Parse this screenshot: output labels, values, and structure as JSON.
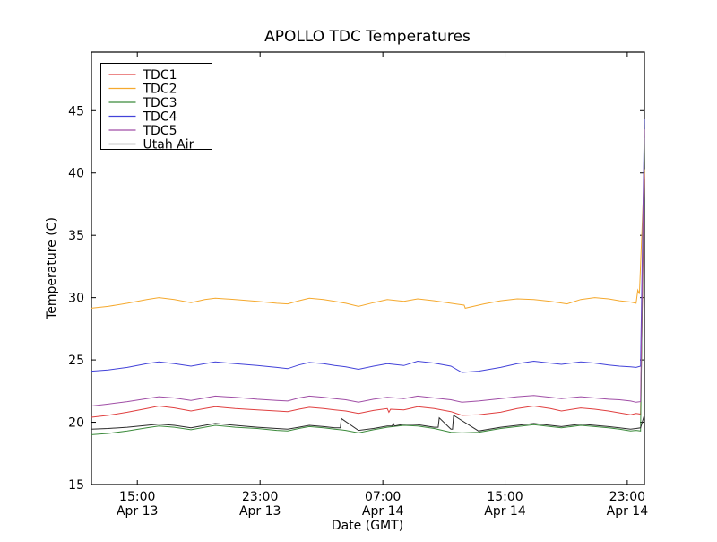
{
  "chart_data": {
    "type": "line",
    "title": "APOLLO TDC Temperatures",
    "xlabel": "Date (GMT)",
    "ylabel": "Temperature (C)",
    "ylim": [
      15,
      49.7
    ],
    "y_ticks": [
      15,
      20,
      25,
      30,
      35,
      40,
      45
    ],
    "x_ticks": [
      {
        "pos": 0.083,
        "time": "15:00",
        "date": "Apr 13"
      },
      {
        "pos": 0.305,
        "time": "23:00",
        "date": "Apr 13"
      },
      {
        "pos": 0.527,
        "time": "07:00",
        "date": "Apr 14"
      },
      {
        "pos": 0.748,
        "time": "15:00",
        "date": "Apr 14"
      },
      {
        "pos": 0.969,
        "time": "23:00",
        "date": "Apr 14"
      }
    ],
    "x_span_hours": 36.1,
    "grid": false,
    "legend_position": "upper-left",
    "series": [
      {
        "name": "TDC1",
        "color": "#e04040",
        "points": [
          [
            0,
            20.4
          ],
          [
            0.03,
            20.55
          ],
          [
            0.065,
            20.8
          ],
          [
            0.1,
            21.1
          ],
          [
            0.122,
            21.3
          ],
          [
            0.15,
            21.15
          ],
          [
            0.18,
            20.9
          ],
          [
            0.205,
            21.1
          ],
          [
            0.224,
            21.25
          ],
          [
            0.26,
            21.1
          ],
          [
            0.3,
            21.0
          ],
          [
            0.335,
            20.9
          ],
          [
            0.355,
            20.85
          ],
          [
            0.375,
            21.05
          ],
          [
            0.394,
            21.2
          ],
          [
            0.42,
            21.1
          ],
          [
            0.44,
            21.0
          ],
          [
            0.46,
            20.9
          ],
          [
            0.483,
            20.7
          ],
          [
            0.51,
            20.95
          ],
          [
            0.535,
            21.1
          ],
          [
            0.538,
            20.8
          ],
          [
            0.541,
            21.05
          ],
          [
            0.565,
            21.0
          ],
          [
            0.59,
            21.25
          ],
          [
            0.62,
            21.1
          ],
          [
            0.65,
            20.85
          ],
          [
            0.67,
            20.55
          ],
          [
            0.7,
            20.6
          ],
          [
            0.74,
            20.8
          ],
          [
            0.77,
            21.1
          ],
          [
            0.8,
            21.3
          ],
          [
            0.83,
            21.1
          ],
          [
            0.85,
            20.9
          ],
          [
            0.885,
            21.15
          ],
          [
            0.91,
            21.05
          ],
          [
            0.935,
            20.9
          ],
          [
            0.955,
            20.75
          ],
          [
            0.975,
            20.6
          ],
          [
            0.985,
            20.7
          ],
          [
            0.993,
            20.65
          ],
          [
            1.0,
            40.0
          ]
        ]
      },
      {
        "name": "TDC2",
        "color": "#f5a92e",
        "points": [
          [
            0,
            29.15
          ],
          [
            0.03,
            29.3
          ],
          [
            0.065,
            29.55
          ],
          [
            0.1,
            29.85
          ],
          [
            0.122,
            30.0
          ],
          [
            0.15,
            29.85
          ],
          [
            0.18,
            29.6
          ],
          [
            0.205,
            29.85
          ],
          [
            0.224,
            29.95
          ],
          [
            0.26,
            29.85
          ],
          [
            0.3,
            29.7
          ],
          [
            0.335,
            29.55
          ],
          [
            0.355,
            29.5
          ],
          [
            0.375,
            29.75
          ],
          [
            0.394,
            29.95
          ],
          [
            0.42,
            29.85
          ],
          [
            0.44,
            29.7
          ],
          [
            0.46,
            29.55
          ],
          [
            0.483,
            29.3
          ],
          [
            0.51,
            29.6
          ],
          [
            0.535,
            29.85
          ],
          [
            0.565,
            29.7
          ],
          [
            0.59,
            29.9
          ],
          [
            0.62,
            29.75
          ],
          [
            0.65,
            29.55
          ],
          [
            0.674,
            29.4
          ],
          [
            0.676,
            29.15
          ],
          [
            0.71,
            29.5
          ],
          [
            0.74,
            29.75
          ],
          [
            0.77,
            29.9
          ],
          [
            0.8,
            29.85
          ],
          [
            0.83,
            29.7
          ],
          [
            0.86,
            29.5
          ],
          [
            0.885,
            29.85
          ],
          [
            0.91,
            30.0
          ],
          [
            0.935,
            29.9
          ],
          [
            0.955,
            29.75
          ],
          [
            0.975,
            29.65
          ],
          [
            0.985,
            29.55
          ],
          [
            0.988,
            30.6
          ],
          [
            0.991,
            30.3
          ],
          [
            1.0,
            40.3
          ]
        ]
      },
      {
        "name": "TDC3",
        "color": "#3b8a3b",
        "points": [
          [
            0,
            19.0
          ],
          [
            0.03,
            19.1
          ],
          [
            0.065,
            19.3
          ],
          [
            0.1,
            19.55
          ],
          [
            0.122,
            19.7
          ],
          [
            0.15,
            19.6
          ],
          [
            0.18,
            19.4
          ],
          [
            0.205,
            19.6
          ],
          [
            0.224,
            19.75
          ],
          [
            0.26,
            19.6
          ],
          [
            0.3,
            19.5
          ],
          [
            0.335,
            19.35
          ],
          [
            0.355,
            19.3
          ],
          [
            0.375,
            19.5
          ],
          [
            0.394,
            19.65
          ],
          [
            0.42,
            19.55
          ],
          [
            0.44,
            19.45
          ],
          [
            0.46,
            19.35
          ],
          [
            0.483,
            19.15
          ],
          [
            0.51,
            19.4
          ],
          [
            0.535,
            19.6
          ],
          [
            0.565,
            19.75
          ],
          [
            0.59,
            19.7
          ],
          [
            0.62,
            19.5
          ],
          [
            0.65,
            19.2
          ],
          [
            0.67,
            19.15
          ],
          [
            0.7,
            19.2
          ],
          [
            0.74,
            19.5
          ],
          [
            0.77,
            19.65
          ],
          [
            0.8,
            19.8
          ],
          [
            0.83,
            19.65
          ],
          [
            0.85,
            19.55
          ],
          [
            0.885,
            19.75
          ],
          [
            0.91,
            19.65
          ],
          [
            0.935,
            19.55
          ],
          [
            0.955,
            19.45
          ],
          [
            0.975,
            19.3
          ],
          [
            0.985,
            19.35
          ],
          [
            0.993,
            19.3
          ],
          [
            1.0,
            42.8
          ]
        ]
      },
      {
        "name": "TDC4",
        "color": "#4343d9",
        "points": [
          [
            0,
            24.1
          ],
          [
            0.03,
            24.2
          ],
          [
            0.065,
            24.4
          ],
          [
            0.1,
            24.7
          ],
          [
            0.122,
            24.85
          ],
          [
            0.15,
            24.7
          ],
          [
            0.18,
            24.5
          ],
          [
            0.205,
            24.7
          ],
          [
            0.224,
            24.85
          ],
          [
            0.26,
            24.7
          ],
          [
            0.3,
            24.55
          ],
          [
            0.335,
            24.4
          ],
          [
            0.355,
            24.3
          ],
          [
            0.375,
            24.6
          ],
          [
            0.394,
            24.8
          ],
          [
            0.42,
            24.7
          ],
          [
            0.44,
            24.55
          ],
          [
            0.46,
            24.45
          ],
          [
            0.483,
            24.25
          ],
          [
            0.51,
            24.5
          ],
          [
            0.535,
            24.7
          ],
          [
            0.565,
            24.55
          ],
          [
            0.59,
            24.9
          ],
          [
            0.62,
            24.75
          ],
          [
            0.65,
            24.5
          ],
          [
            0.67,
            24.0
          ],
          [
            0.7,
            24.1
          ],
          [
            0.74,
            24.4
          ],
          [
            0.77,
            24.7
          ],
          [
            0.8,
            24.9
          ],
          [
            0.83,
            24.75
          ],
          [
            0.85,
            24.65
          ],
          [
            0.885,
            24.85
          ],
          [
            0.91,
            24.75
          ],
          [
            0.935,
            24.6
          ],
          [
            0.955,
            24.5
          ],
          [
            0.975,
            24.45
          ],
          [
            0.985,
            24.4
          ],
          [
            0.993,
            24.5
          ],
          [
            1.0,
            44.3
          ]
        ]
      },
      {
        "name": "TDC5",
        "color": "#a04ea6",
        "points": [
          [
            0,
            21.3
          ],
          [
            0.03,
            21.45
          ],
          [
            0.065,
            21.65
          ],
          [
            0.1,
            21.9
          ],
          [
            0.122,
            22.05
          ],
          [
            0.15,
            21.95
          ],
          [
            0.18,
            21.75
          ],
          [
            0.205,
            21.95
          ],
          [
            0.224,
            22.1
          ],
          [
            0.26,
            22.0
          ],
          [
            0.3,
            21.85
          ],
          [
            0.335,
            21.75
          ],
          [
            0.355,
            21.7
          ],
          [
            0.375,
            21.95
          ],
          [
            0.394,
            22.1
          ],
          [
            0.42,
            22.0
          ],
          [
            0.44,
            21.9
          ],
          [
            0.46,
            21.8
          ],
          [
            0.483,
            21.6
          ],
          [
            0.51,
            21.85
          ],
          [
            0.535,
            22.0
          ],
          [
            0.565,
            21.9
          ],
          [
            0.59,
            22.1
          ],
          [
            0.62,
            21.95
          ],
          [
            0.65,
            21.8
          ],
          [
            0.67,
            21.6
          ],
          [
            0.7,
            21.7
          ],
          [
            0.74,
            21.9
          ],
          [
            0.77,
            22.05
          ],
          [
            0.8,
            22.15
          ],
          [
            0.83,
            22.0
          ],
          [
            0.85,
            21.9
          ],
          [
            0.885,
            22.05
          ],
          [
            0.91,
            21.95
          ],
          [
            0.935,
            21.85
          ],
          [
            0.955,
            21.8
          ],
          [
            0.975,
            21.7
          ],
          [
            0.985,
            21.6
          ],
          [
            0.993,
            21.65
          ],
          [
            1.0,
            43.5
          ]
        ]
      },
      {
        "name": "Utah Air",
        "color": "#2b2b2b",
        "points": [
          [
            0,
            19.45
          ],
          [
            0.03,
            19.5
          ],
          [
            0.065,
            19.6
          ],
          [
            0.1,
            19.75
          ],
          [
            0.122,
            19.85
          ],
          [
            0.15,
            19.75
          ],
          [
            0.18,
            19.55
          ],
          [
            0.205,
            19.75
          ],
          [
            0.224,
            19.9
          ],
          [
            0.26,
            19.75
          ],
          [
            0.3,
            19.6
          ],
          [
            0.335,
            19.5
          ],
          [
            0.355,
            19.45
          ],
          [
            0.375,
            19.6
          ],
          [
            0.394,
            19.75
          ],
          [
            0.42,
            19.65
          ],
          [
            0.44,
            19.55
          ],
          [
            0.45,
            19.55
          ],
          [
            0.452,
            20.3
          ],
          [
            0.483,
            19.35
          ],
          [
            0.51,
            19.5
          ],
          [
            0.535,
            19.7
          ],
          [
            0.544,
            19.7
          ],
          [
            0.546,
            19.9
          ],
          [
            0.548,
            19.7
          ],
          [
            0.565,
            19.85
          ],
          [
            0.59,
            19.8
          ],
          [
            0.62,
            19.6
          ],
          [
            0.627,
            19.6
          ],
          [
            0.629,
            20.35
          ],
          [
            0.65,
            19.45
          ],
          [
            0.653,
            19.45
          ],
          [
            0.655,
            20.55
          ],
          [
            0.7,
            19.3
          ],
          [
            0.74,
            19.6
          ],
          [
            0.77,
            19.75
          ],
          [
            0.8,
            19.9
          ],
          [
            0.83,
            19.75
          ],
          [
            0.85,
            19.65
          ],
          [
            0.885,
            19.85
          ],
          [
            0.91,
            19.75
          ],
          [
            0.935,
            19.65
          ],
          [
            0.955,
            19.55
          ],
          [
            0.975,
            19.45
          ],
          [
            0.985,
            19.5
          ],
          [
            0.993,
            19.55
          ],
          [
            1.0,
            20.6
          ]
        ]
      }
    ]
  }
}
